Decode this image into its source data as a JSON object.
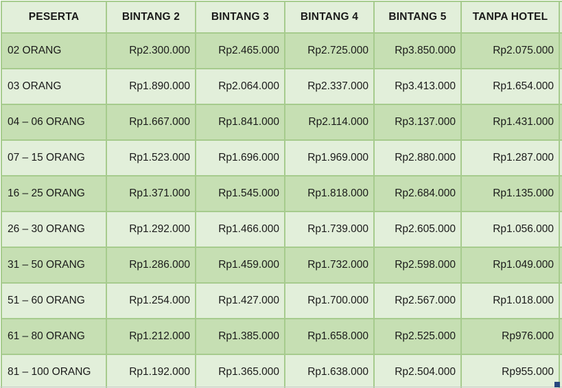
{
  "table": {
    "columns": [
      "PESERTA",
      "BINTANG 2",
      "BINTANG 3",
      "BINTANG 4",
      "BINTANG 5",
      "TANPA HOTEL"
    ],
    "rows": [
      {
        "peserta": "02 ORANG",
        "prices": [
          "Rp2.300.000",
          "Rp2.465.000",
          "Rp2.725.000",
          "Rp3.850.000",
          "Rp2.075.000"
        ]
      },
      {
        "peserta": "03 ORANG",
        "prices": [
          "Rp1.890.000",
          "Rp2.064.000",
          "Rp2.337.000",
          "Rp3.413.000",
          "Rp1.654.000"
        ]
      },
      {
        "peserta": "04 – 06 ORANG",
        "prices": [
          "Rp1.667.000",
          "Rp1.841.000",
          "Rp2.114.000",
          "Rp3.137.000",
          "Rp1.431.000"
        ]
      },
      {
        "peserta": "07 – 15 ORANG",
        "prices": [
          "Rp1.523.000",
          "Rp1.696.000",
          "Rp1.969.000",
          "Rp2.880.000",
          "Rp1.287.000"
        ]
      },
      {
        "peserta": "16 – 25 ORANG",
        "prices": [
          "Rp1.371.000",
          "Rp1.545.000",
          "Rp1.818.000",
          "Rp2.684.000",
          "Rp1.135.000"
        ]
      },
      {
        "peserta": "26 – 30 ORANG",
        "prices": [
          "Rp1.292.000",
          "Rp1.466.000",
          "Rp1.739.000",
          "Rp2.605.000",
          "Rp1.056.000"
        ]
      },
      {
        "peserta": "31 – 50 ORANG",
        "prices": [
          "Rp1.286.000",
          "Rp1.459.000",
          "Rp1.732.000",
          "Rp2.598.000",
          "Rp1.049.000"
        ]
      },
      {
        "peserta": "51 – 60 ORANG",
        "prices": [
          "Rp1.254.000",
          "Rp1.427.000",
          "Rp1.700.000",
          "Rp2.567.000",
          "Rp1.018.000"
        ]
      },
      {
        "peserta": "61 – 80 ORANG",
        "prices": [
          "Rp1.212.000",
          "Rp1.385.000",
          "Rp1.658.000",
          "Rp2.525.000",
          "Rp976.000"
        ]
      },
      {
        "peserta": "81 – 100 ORANG",
        "prices": [
          "Rp1.192.000",
          "Rp1.365.000",
          "Rp1.638.000",
          "Rp2.504.000",
          "Rp955.000"
        ]
      }
    ]
  },
  "colors": {
    "header_bg": "#e2efda",
    "band_dark": "#c6dfb3",
    "band_light": "#e2efda",
    "grid": "#a6cb8d",
    "text": "#1a1a1a",
    "resize_handle": "#26477e"
  }
}
